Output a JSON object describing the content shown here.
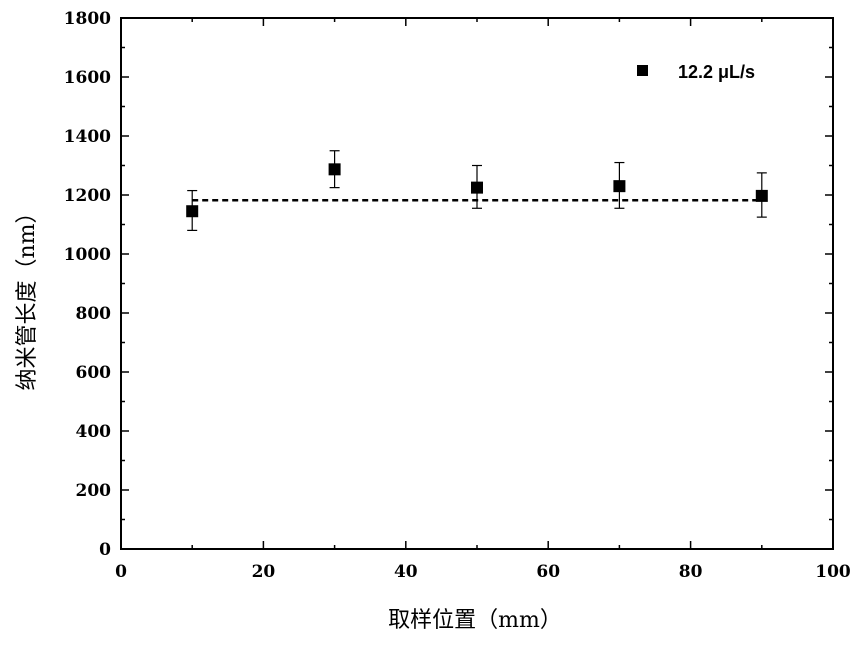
{
  "chart_data": {
    "type": "scatter",
    "title": "",
    "xlabel": "取样位置（mm）",
    "ylabel": "纳米管长度（nm）",
    "xlim": [
      0,
      100
    ],
    "ylim": [
      0,
      1800
    ],
    "xticks": [
      0,
      20,
      40,
      60,
      80,
      100
    ],
    "yticks": [
      0,
      200,
      400,
      600,
      800,
      1000,
      1200,
      1400,
      1600,
      1800
    ],
    "grid": false,
    "legend_position": "top-right",
    "series": [
      {
        "name": "12.2 μL/s",
        "marker": "square",
        "color": "#000000",
        "x": [
          10,
          30,
          50,
          70,
          90
        ],
        "y": [
          1145,
          1287,
          1225,
          1230,
          1197
        ],
        "error_low": [
          1080,
          1225,
          1155,
          1155,
          1125
        ],
        "error_high": [
          1215,
          1350,
          1300,
          1310,
          1275
        ]
      }
    ],
    "reference_line": {
      "style": "dashed",
      "y": 1182,
      "x_range": [
        10,
        90
      ]
    }
  }
}
